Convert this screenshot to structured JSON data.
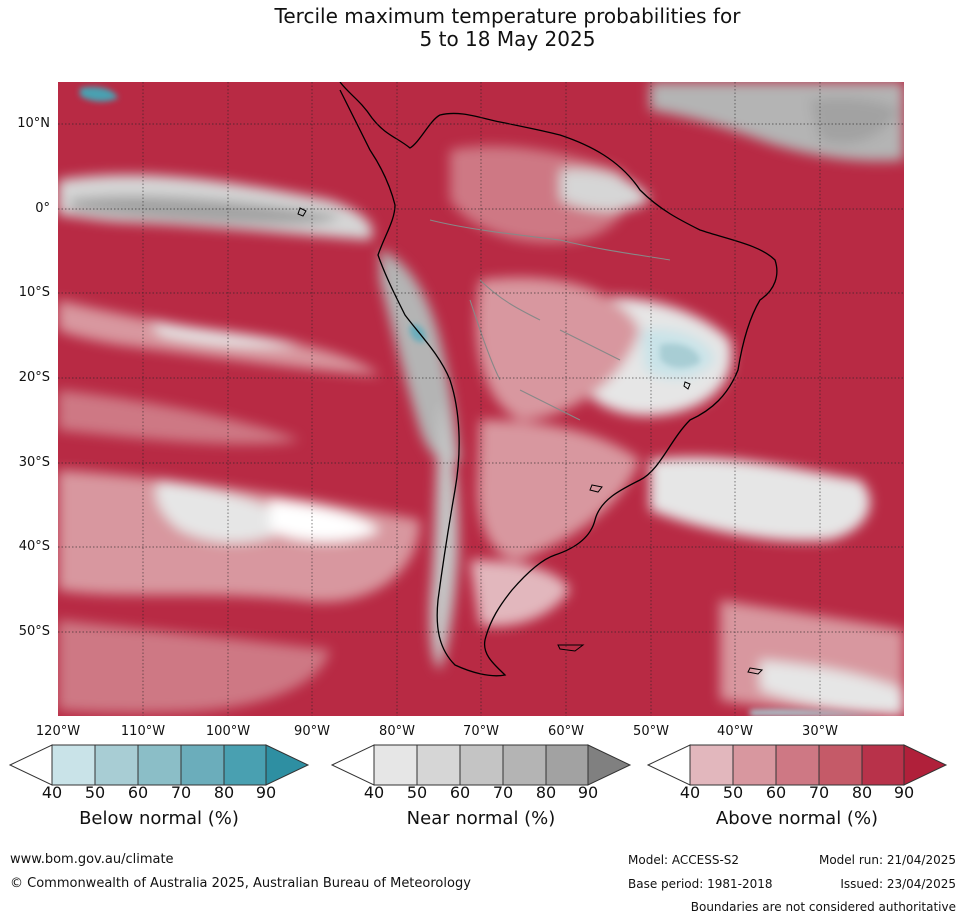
{
  "title": {
    "line1": "Tercile maximum temperature probabilities for",
    "line2": "5 to 18 May 2025"
  },
  "lat_labels": [
    "10°N",
    "0°",
    "10°S",
    "20°S",
    "30°S",
    "40°S",
    "50°S"
  ],
  "lon_labels": [
    "120°W",
    "110°W",
    "100°W",
    "90°W",
    "80°W",
    "70°W",
    "60°W",
    "50°W",
    "40°W",
    "30°W"
  ],
  "colorbars": [
    {
      "title": "Below normal (%)",
      "ticks": [
        "40",
        "50",
        "60",
        "70",
        "80",
        "90"
      ],
      "colors": [
        "#ffffff",
        "#c9e3e8",
        "#a8cdd4",
        "#8bbec7",
        "#6badbb",
        "#49a0b1",
        "#2e8fa2"
      ]
    },
    {
      "title": "Near normal (%)",
      "ticks": [
        "40",
        "50",
        "60",
        "70",
        "80",
        "90"
      ],
      "colors": [
        "#ffffff",
        "#e6e6e6",
        "#d6d6d6",
        "#c4c4c4",
        "#b4b4b4",
        "#a2a2a2",
        "#808080"
      ]
    },
    {
      "title": "Above normal (%)",
      "ticks": [
        "40",
        "50",
        "60",
        "70",
        "80",
        "90"
      ],
      "colors": [
        "#ffffff",
        "#e2b7bd",
        "#d8979f",
        "#ce7884",
        "#c55a68",
        "#b8324a",
        "#b0203a"
      ]
    }
  ],
  "footer": {
    "website": "www.bom.gov.au/climate",
    "copyright": "© Commonwealth of Australia 2025, Australian Bureau of Meteorology",
    "model": "Model: ACCESS-S2",
    "model_run": "Model run: 21/04/2025",
    "base_period": "Base period: 1981-2018",
    "issued": "Issued: 23/04/2025",
    "boundaries_note": "Boundaries are not considered authoritative"
  }
}
